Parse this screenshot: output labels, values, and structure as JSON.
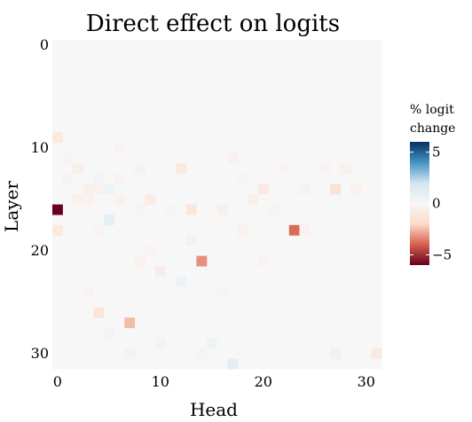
{
  "chart_data": {
    "type": "heatmap",
    "title": "Direct effect on logits",
    "xlabel": "Head",
    "ylabel": "Layer",
    "x_ticks": [
      0,
      10,
      20,
      30
    ],
    "y_ticks": [
      0,
      10,
      20,
      30
    ],
    "n_heads": 32,
    "n_layers": 32,
    "grid": false,
    "colorbar": {
      "title_lines": [
        "% logit",
        "change"
      ],
      "ticks": [
        5,
        0,
        -5
      ],
      "vmin": -6,
      "vmax": 6,
      "colormap": "diverging red-white-blue (RdBu)",
      "colors": [
        "#67001f",
        "#d6604d",
        "#fddbc7",
        "#f7f7f7",
        "#d1e5f0",
        "#4393c3",
        "#053061"
      ]
    },
    "background_value": 0,
    "cells": [
      {
        "head": 0,
        "layer": 9,
        "value": -1.0
      },
      {
        "head": 0,
        "layer": 16,
        "value": -6.0
      },
      {
        "head": 0,
        "layer": 18,
        "value": -1.0
      },
      {
        "head": 1,
        "layer": 11,
        "value": -0.3
      },
      {
        "head": 1,
        "layer": 13,
        "value": -0.3
      },
      {
        "head": 2,
        "layer": 12,
        "value": -0.6
      },
      {
        "head": 2,
        "layer": 15,
        "value": -0.5
      },
      {
        "head": 3,
        "layer": 14,
        "value": -0.5
      },
      {
        "head": 3,
        "layer": 15,
        "value": -0.4
      },
      {
        "head": 3,
        "layer": 24,
        "value": -0.3
      },
      {
        "head": 4,
        "layer": 13,
        "value": 0.3
      },
      {
        "head": 4,
        "layer": 14,
        "value": -0.4
      },
      {
        "head": 4,
        "layer": 18,
        "value": -0.3
      },
      {
        "head": 4,
        "layer": 26,
        "value": -1.3
      },
      {
        "head": 5,
        "layer": 14,
        "value": 0.5
      },
      {
        "head": 5,
        "layer": 17,
        "value": 0.9
      },
      {
        "head": 5,
        "layer": 28,
        "value": 0.3
      },
      {
        "head": 6,
        "layer": 10,
        "value": -0.3
      },
      {
        "head": 6,
        "layer": 13,
        "value": -0.3
      },
      {
        "head": 6,
        "layer": 15,
        "value": -0.4
      },
      {
        "head": 7,
        "layer": 27,
        "value": -2.5
      },
      {
        "head": 7,
        "layer": 30,
        "value": 0.3
      },
      {
        "head": 8,
        "layer": 12,
        "value": 0.3
      },
      {
        "head": 8,
        "layer": 16,
        "value": -0.3
      },
      {
        "head": 8,
        "layer": 21,
        "value": -0.4
      },
      {
        "head": 9,
        "layer": 15,
        "value": -0.8
      },
      {
        "head": 9,
        "layer": 20,
        "value": -0.3
      },
      {
        "head": 10,
        "layer": 22,
        "value": -0.8
      },
      {
        "head": 10,
        "layer": 29,
        "value": 0.3
      },
      {
        "head": 11,
        "layer": 16,
        "value": 0.2
      },
      {
        "head": 12,
        "layer": 12,
        "value": -1.0
      },
      {
        "head": 12,
        "layer": 23,
        "value": 0.6
      },
      {
        "head": 13,
        "layer": 16,
        "value": -1.2
      },
      {
        "head": 13,
        "layer": 19,
        "value": 0.5
      },
      {
        "head": 14,
        "layer": 21,
        "value": -3.2
      },
      {
        "head": 14,
        "layer": 30,
        "value": -0.3
      },
      {
        "head": 15,
        "layer": 29,
        "value": 0.5
      },
      {
        "head": 16,
        "layer": 16,
        "value": -0.6
      },
      {
        "head": 16,
        "layer": 24,
        "value": -0.3
      },
      {
        "head": 17,
        "layer": 11,
        "value": -0.4
      },
      {
        "head": 17,
        "layer": 31,
        "value": 1.0
      },
      {
        "head": 18,
        "layer": 13,
        "value": 0.2
      },
      {
        "head": 18,
        "layer": 18,
        "value": -0.4
      },
      {
        "head": 19,
        "layer": 15,
        "value": -0.5
      },
      {
        "head": 20,
        "layer": 14,
        "value": -0.9
      },
      {
        "head": 20,
        "layer": 21,
        "value": -0.3
      },
      {
        "head": 21,
        "layer": 16,
        "value": -0.3
      },
      {
        "head": 22,
        "layer": 12,
        "value": -0.3
      },
      {
        "head": 23,
        "layer": 18,
        "value": -3.8
      },
      {
        "head": 24,
        "layer": 14,
        "value": 0.3
      },
      {
        "head": 24,
        "layer": 18,
        "value": -0.4
      },
      {
        "head": 26,
        "layer": 12,
        "value": -0.3
      },
      {
        "head": 27,
        "layer": 14,
        "value": -1.5
      },
      {
        "head": 27,
        "layer": 30,
        "value": -0.6
      },
      {
        "head": 28,
        "layer": 12,
        "value": -0.5
      },
      {
        "head": 29,
        "layer": 14,
        "value": -0.4
      },
      {
        "head": 31,
        "layer": 30,
        "value": -1.0
      }
    ]
  }
}
